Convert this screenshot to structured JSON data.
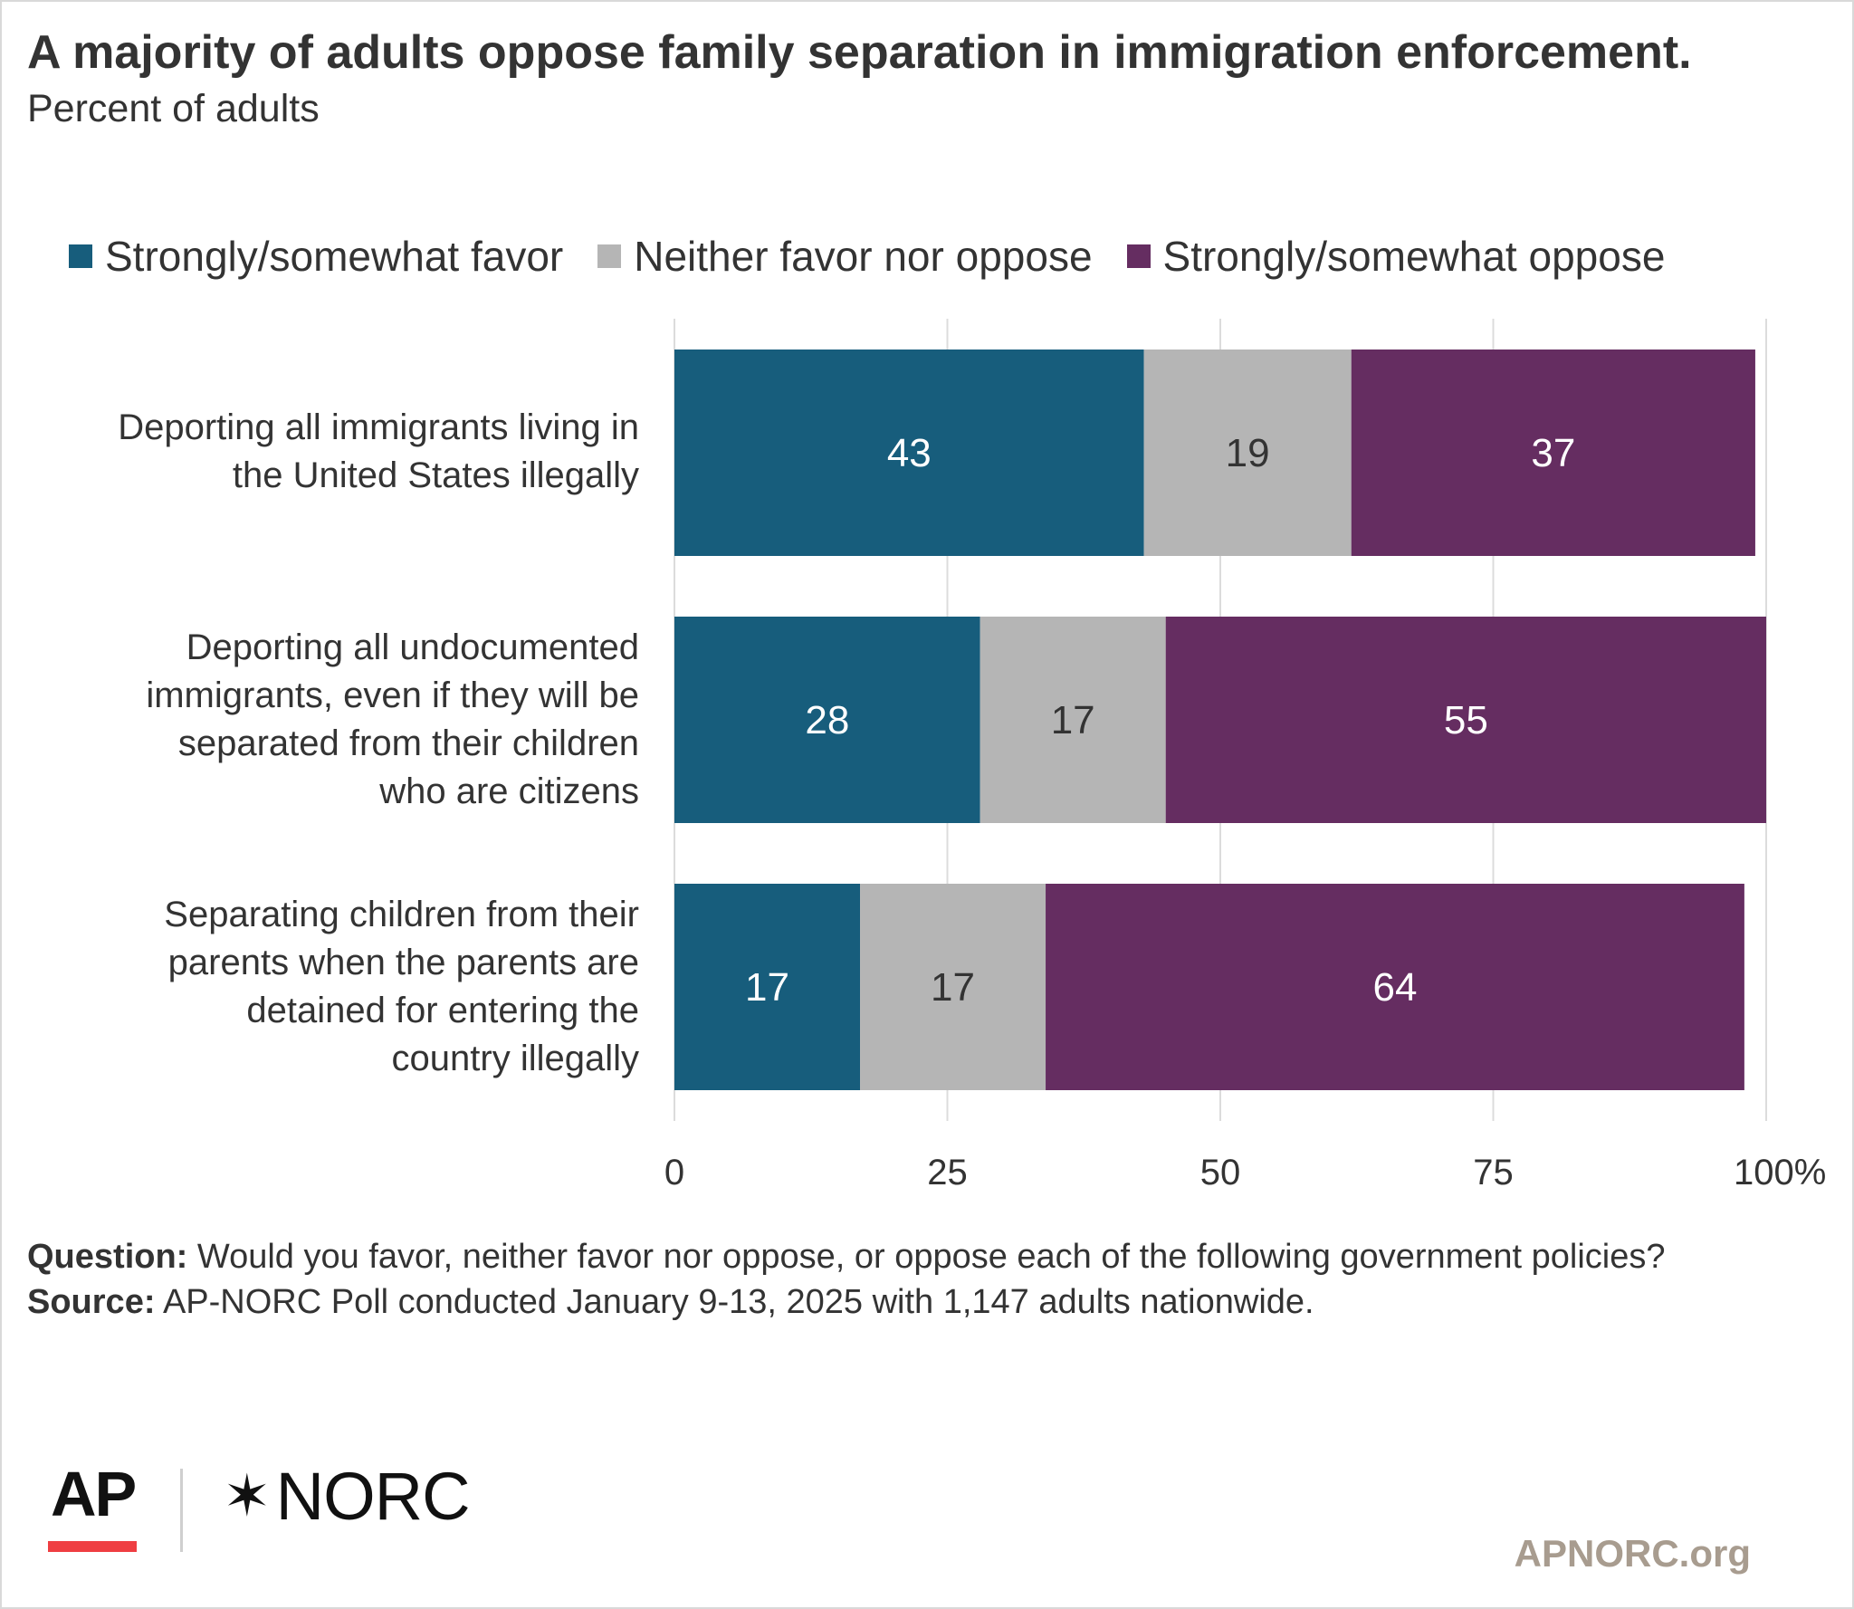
{
  "chart_data": {
    "type": "bar",
    "orientation": "horizontal",
    "stacked": true,
    "title": "A majority of adults oppose family separation in immigration enforcement.",
    "subtitle": "Percent of adults",
    "categories": [
      [
        "Deporting all immigrants living in",
        "the United States illegally"
      ],
      [
        "Deporting all undocumented",
        "immigrants, even if they will be",
        "separated from their children",
        "who are citizens"
      ],
      [
        "Separating children from their",
        "parents when the parents are",
        "detained for entering the",
        "country illegally"
      ]
    ],
    "series": [
      {
        "name": "Strongly/somewhat favor",
        "color": "#175d7c",
        "values": [
          43,
          28,
          17
        ]
      },
      {
        "name": "Neither favor nor oppose",
        "color": "#b5b5b5",
        "values": [
          19,
          17,
          17
        ]
      },
      {
        "name": "Strongly/somewhat oppose",
        "color": "#652d61",
        "values": [
          37,
          55,
          64
        ]
      }
    ],
    "xlim": [
      0,
      100
    ],
    "x_ticks": [
      "0",
      "25",
      "50",
      "75",
      "100%"
    ],
    "grid": true,
    "legend": "top",
    "data_labels": true
  },
  "footnote": {
    "question_label": "Question:",
    "question_text": "Would you favor, neither favor nor oppose, or oppose each of the following government policies?",
    "source_label": "Source:",
    "source_text": "AP-NORC Poll conducted January 9-13, 2025 with 1,147 adults nationwide."
  },
  "logos": {
    "ap": "AP",
    "norc": "NORC",
    "norc_mark": "✶"
  },
  "site": "APNORC.org"
}
